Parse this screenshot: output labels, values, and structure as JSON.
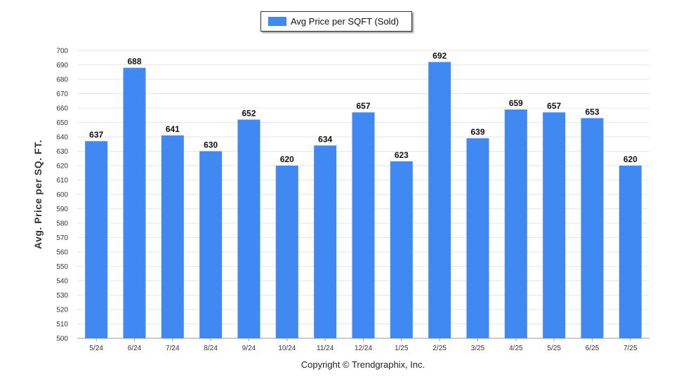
{
  "chart_data": {
    "type": "bar",
    "title": "",
    "xlabel": "",
    "ylabel": "Avg. Price per SQ. FT.",
    "categories": [
      "5/24",
      "6/24",
      "7/24",
      "8/24",
      "9/24",
      "10/24",
      "11/24",
      "12/24",
      "1/25",
      "2/25",
      "3/25",
      "4/25",
      "5/25",
      "6/25",
      "7/25"
    ],
    "series": [
      {
        "name": "Avg Price per SQFT (Sold)",
        "values": [
          637,
          688,
          641,
          630,
          652,
          620,
          634,
          657,
          623,
          692,
          639,
          659,
          657,
          653,
          620
        ]
      }
    ],
    "ylim": [
      500,
      700
    ],
    "yticks": [
      500,
      510,
      520,
      530,
      540,
      550,
      560,
      570,
      580,
      590,
      600,
      610,
      620,
      630,
      640,
      650,
      660,
      670,
      680,
      690,
      700
    ],
    "grid": true,
    "legend_position": "top-center",
    "bar_color": "#4189F2"
  },
  "footer": {
    "copyright": "Copyright © Trendgraphix, Inc."
  }
}
